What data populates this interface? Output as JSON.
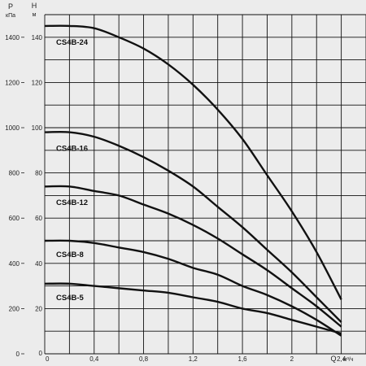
{
  "chart_data": {
    "type": "line",
    "xlabel": "Q",
    "xunit": "м³/ч",
    "y_left_label": "P",
    "y_left_unit": "кПа",
    "y_right_label": "H",
    "y_right_unit": "м",
    "xlim": [
      0,
      2.6
    ],
    "ylim_head": [
      0,
      150
    ],
    "ylim_pressure": [
      0,
      1500
    ],
    "x_ticks": [
      "0",
      "0,4",
      "0,8",
      "1,2",
      "1,6",
      "2",
      "2,4"
    ],
    "x_tick_values": [
      0,
      0.4,
      0.8,
      1.2,
      1.6,
      2.0,
      2.4
    ],
    "head_ticks": [
      "0",
      "20",
      "40",
      "60",
      "80",
      "100",
      "120",
      "140"
    ],
    "head_tick_values": [
      0,
      20,
      40,
      60,
      80,
      100,
      120,
      140
    ],
    "pressure_ticks": [
      "0",
      "200",
      "400",
      "600",
      "800",
      "1000",
      "1200",
      "1400"
    ],
    "pressure_tick_values": [
      0,
      200,
      400,
      600,
      800,
      1000,
      1200,
      1400
    ],
    "grid": true,
    "series": [
      {
        "name": "CS4B-24",
        "x": [
          0,
          0.2,
          0.4,
          0.6,
          0.8,
          1.0,
          1.2,
          1.4,
          1.6,
          1.8,
          2.0,
          2.2,
          2.4
        ],
        "y": [
          145,
          145,
          144,
          140,
          135,
          128,
          119,
          108,
          95,
          79,
          63,
          45,
          24
        ]
      },
      {
        "name": "CS4B-16",
        "x": [
          0,
          0.2,
          0.4,
          0.6,
          0.8,
          1.0,
          1.2,
          1.4,
          1.6,
          1.8,
          2.0,
          2.2,
          2.4
        ],
        "y": [
          98,
          98,
          96,
          92,
          87,
          81,
          74,
          65,
          56,
          46,
          36,
          25,
          14
        ]
      },
      {
        "name": "CS4B-12",
        "x": [
          0,
          0.2,
          0.4,
          0.6,
          0.8,
          1.0,
          1.2,
          1.4,
          1.6,
          1.8,
          2.0,
          2.2,
          2.4
        ],
        "y": [
          74,
          74,
          72,
          70,
          66,
          62,
          57,
          51,
          44,
          37,
          29,
          21,
          12
        ]
      },
      {
        "name": "CS4B-8",
        "x": [
          0,
          0.2,
          0.4,
          0.6,
          0.8,
          1.0,
          1.2,
          1.4,
          1.6,
          1.8,
          2.0,
          2.2,
          2.4
        ],
        "y": [
          50,
          50,
          49,
          47,
          45,
          42,
          38,
          35,
          30,
          26,
          21,
          15,
          8
        ]
      },
      {
        "name": "CS4B-5",
        "x": [
          0,
          0.2,
          0.4,
          0.6,
          0.8,
          1.0,
          1.2,
          1.4,
          1.6,
          1.8,
          2.0,
          2.2,
          2.4
        ],
        "y": [
          31,
          31,
          30,
          29,
          28,
          27,
          25,
          23,
          20,
          18,
          15,
          12,
          9
        ]
      }
    ]
  }
}
